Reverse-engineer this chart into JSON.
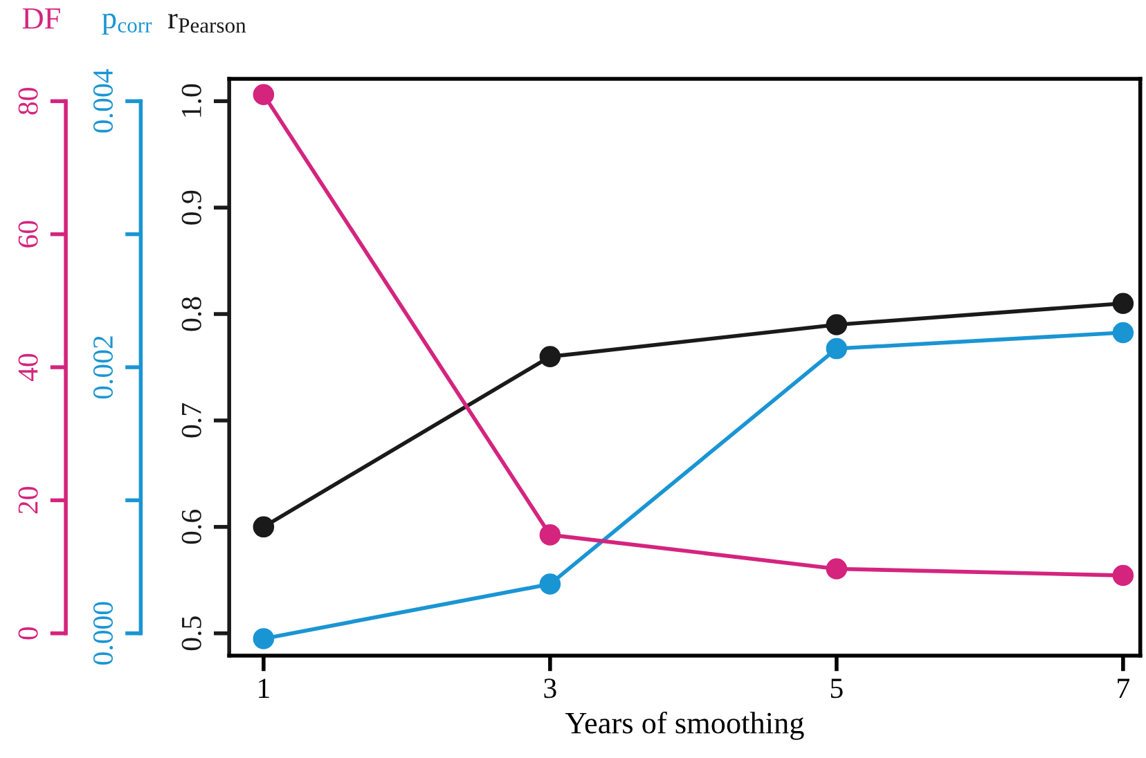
{
  "chart_data": {
    "type": "line",
    "xlabel": "Years of smoothing",
    "ylabel": "r$_{Pearson}$",
    "y2label": "p$_{corr}$",
    "y3label": "DF",
    "x": [
      1,
      3,
      5,
      7
    ],
    "xlim": [
      0.76,
      7.12
    ],
    "xticks": [
      1,
      3,
      5,
      7
    ],
    "ylim": [
      0.479,
      1.021
    ],
    "yticks": [
      0.5,
      0.6,
      0.7,
      0.8,
      0.9,
      {
        "value": 1,
        "label": "1.0"
      }
    ],
    "y2lim": [
      -0.000168,
      0.004168
    ],
    "y2ticks": [
      {
        "value": 0,
        "label": "0.000"
      },
      {
        "value": 0.001,
        "label": null
      },
      {
        "value": 0.002,
        "label": "0.002"
      },
      {
        "value": 0.003,
        "label": null
      },
      {
        "value": 0.004,
        "label": "0.004"
      }
    ],
    "y3lim": [
      -3.36,
      83.36
    ],
    "y3ticks": [
      0,
      20,
      40,
      60,
      80
    ],
    "marker": "circle",
    "line_style": "solid",
    "grid": false,
    "legend": false,
    "series": [
      {
        "axis": "y3",
        "color": "#d4247e",
        "values": [
          81,
          14.8,
          9.7,
          8.7
        ]
      },
      {
        "axis": "y2",
        "color": "#1a95d3",
        "values": [
          -4e-05,
          0.00037,
          0.00214,
          0.00226
        ]
      },
      {
        "axis": "y",
        "color": "#1a1a1a",
        "values": [
          0.6,
          0.76,
          0.79,
          0.81
        ]
      }
    ]
  }
}
